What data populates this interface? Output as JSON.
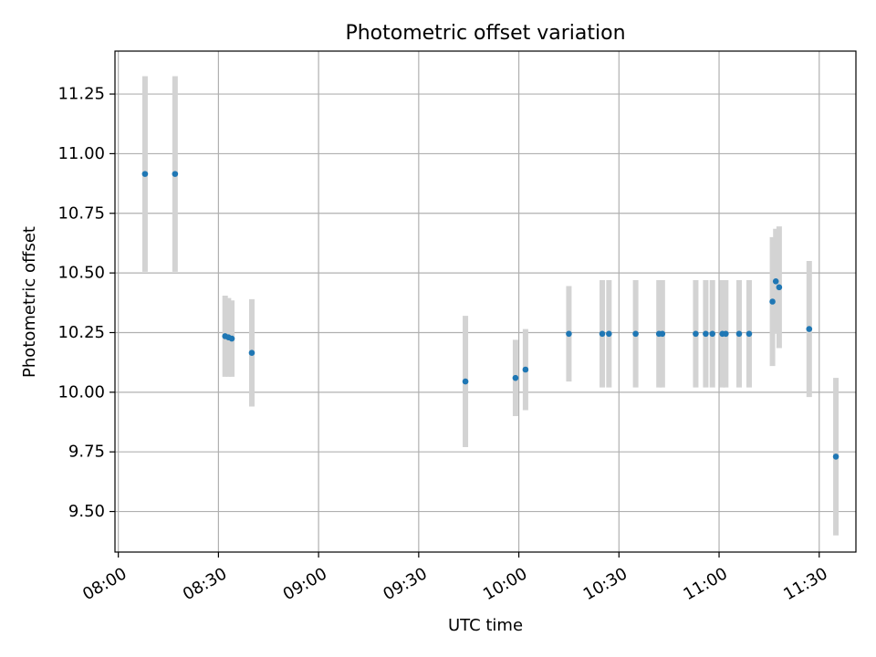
{
  "chart_data": {
    "type": "scatter",
    "title": "Photometric offset variation",
    "xlabel": "UTC time",
    "ylabel": "Photometric offset",
    "x_tick_labels": [
      "08:00",
      "08:30",
      "09:00",
      "09:30",
      "10:00",
      "10:30",
      "11:00",
      "11:30"
    ],
    "y_tick_labels": [
      "9.50",
      "9.75",
      "10.00",
      "10.25",
      "10.50",
      "10.75",
      "11.00",
      "11.25"
    ],
    "y_ticks": [
      9.5,
      9.75,
      10.0,
      10.25,
      10.5,
      10.75,
      11.0,
      11.25
    ],
    "xlim": [
      "07:59",
      "11:41"
    ],
    "ylim": [
      9.33,
      11.43
    ],
    "grid": true,
    "colors": {
      "marker": "#1f77b4",
      "errorbar": "#d3d3d3",
      "grid": "#b0b0b0"
    },
    "points": [
      {
        "time": "08:08",
        "y": 10.915,
        "yerr": 0.41
      },
      {
        "time": "08:17",
        "y": 10.915,
        "yerr": 0.41
      },
      {
        "time": "08:32",
        "y": 10.235,
        "yerr": 0.17
      },
      {
        "time": "08:33",
        "y": 10.23,
        "yerr": 0.165
      },
      {
        "time": "08:34",
        "y": 10.225,
        "yerr": 0.16
      },
      {
        "time": "08:40",
        "y": 10.165,
        "yerr": 0.225
      },
      {
        "time": "09:44",
        "y": 10.045,
        "yerr": 0.275
      },
      {
        "time": "09:59",
        "y": 10.06,
        "yerr": 0.16
      },
      {
        "time": "10:02",
        "y": 10.095,
        "yerr": 0.17
      },
      {
        "time": "10:15",
        "y": 10.245,
        "yerr": 0.2
      },
      {
        "time": "10:25",
        "y": 10.245,
        "yerr": 0.225
      },
      {
        "time": "10:27",
        "y": 10.245,
        "yerr": 0.225
      },
      {
        "time": "10:35",
        "y": 10.245,
        "yerr": 0.225
      },
      {
        "time": "10:42",
        "y": 10.245,
        "yerr": 0.225
      },
      {
        "time": "10:43",
        "y": 10.245,
        "yerr": 0.225
      },
      {
        "time": "10:53",
        "y": 10.245,
        "yerr": 0.225
      },
      {
        "time": "10:56",
        "y": 10.245,
        "yerr": 0.225
      },
      {
        "time": "10:58",
        "y": 10.245,
        "yerr": 0.225
      },
      {
        "time": "11:01",
        "y": 10.245,
        "yerr": 0.225
      },
      {
        "time": "11:02",
        "y": 10.245,
        "yerr": 0.225
      },
      {
        "time": "11:06",
        "y": 10.245,
        "yerr": 0.225
      },
      {
        "time": "11:09",
        "y": 10.245,
        "yerr": 0.225
      },
      {
        "time": "11:16",
        "y": 10.38,
        "yerr": 0.27
      },
      {
        "time": "11:17",
        "y": 10.465,
        "yerr": 0.22
      },
      {
        "time": "11:18",
        "y": 10.44,
        "yerr": 0.255
      },
      {
        "time": "11:27",
        "y": 10.265,
        "yerr": 0.285
      },
      {
        "time": "11:35",
        "y": 9.73,
        "yerr": 0.33
      }
    ]
  }
}
